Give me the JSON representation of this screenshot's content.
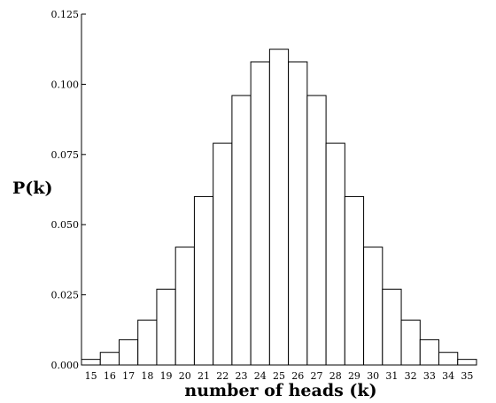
{
  "chart_data": {
    "type": "bar",
    "title": "",
    "xlabel": "number of heads (k)",
    "ylabel": "P(k)",
    "categories": [
      "15",
      "16",
      "17",
      "18",
      "19",
      "20",
      "21",
      "22",
      "23",
      "24",
      "25",
      "26",
      "27",
      "28",
      "29",
      "30",
      "31",
      "32",
      "33",
      "34",
      "35"
    ],
    "values": [
      0.002,
      0.0045,
      0.009,
      0.016,
      0.027,
      0.042,
      0.06,
      0.079,
      0.096,
      0.108,
      0.1125,
      0.108,
      0.096,
      0.079,
      0.06,
      0.042,
      0.027,
      0.016,
      0.009,
      0.0045,
      0.002
    ],
    "ylim": [
      0,
      0.125
    ],
    "yticks": [
      "0.000",
      "0.025",
      "0.050",
      "0.075",
      "0.100",
      "0.125"
    ],
    "grid": false,
    "bar_fill": "#ffffff",
    "bar_stroke": "#000000"
  }
}
